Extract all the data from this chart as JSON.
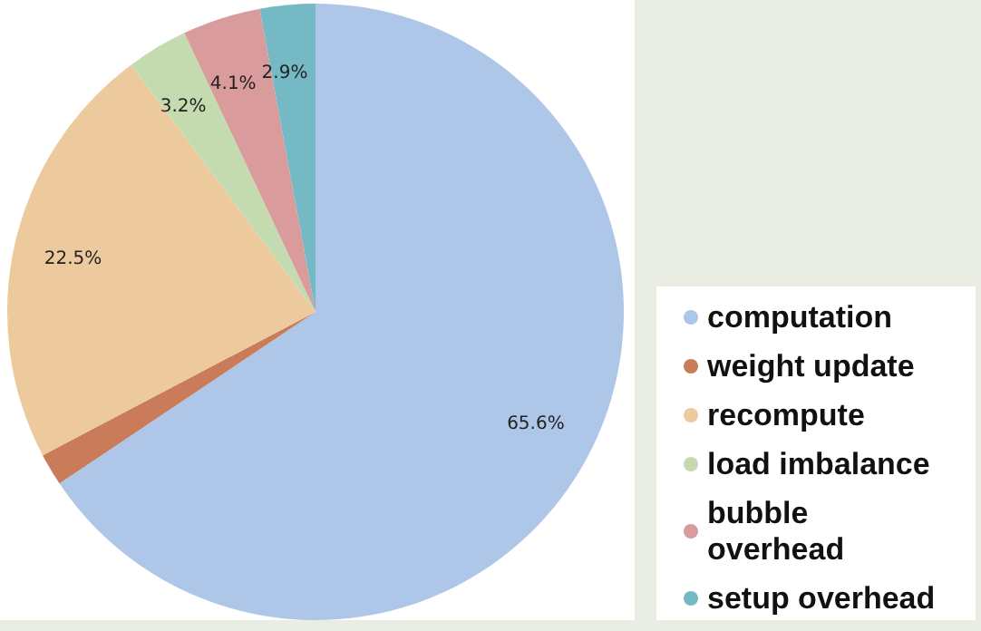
{
  "chart_data": {
    "type": "pie",
    "categories": [
      "computation",
      "weight update",
      "recompute",
      "load imbalance",
      "bubble overhead",
      "setup overhead"
    ],
    "values": [
      65.6,
      1.7,
      22.5,
      3.2,
      4.1,
      2.9
    ],
    "colors": [
      "#aec6e8",
      "#c97b5a",
      "#edca9e",
      "#c4dbb0",
      "#d99b9b",
      "#74b9c4"
    ],
    "value_labels": [
      "65.6%",
      null,
      "22.5%",
      "3.2%",
      "4.1%",
      "2.9%"
    ],
    "legend": "right"
  }
}
